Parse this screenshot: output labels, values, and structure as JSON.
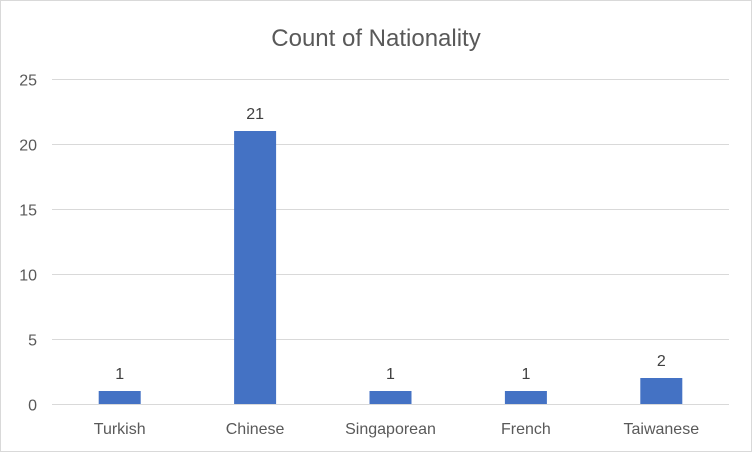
{
  "chart_data": {
    "type": "bar",
    "title": "Count of Nationality",
    "xlabel": "",
    "ylabel": "",
    "categories": [
      "Turkish",
      "Chinese",
      "Singaporean",
      "French",
      "Taiwanese"
    ],
    "values": [
      1,
      21,
      1,
      1,
      2
    ],
    "data_labels": [
      "1",
      "21",
      "1",
      "1",
      "2"
    ],
    "ylim": [
      0,
      25
    ],
    "yticks": [
      0,
      5,
      10,
      15,
      20,
      25
    ],
    "ytick_labels": [
      "0",
      "5",
      "10",
      "15",
      "20",
      "25"
    ],
    "grid": true,
    "legend": "none",
    "bar_color": "#4472C4",
    "grid_color": "#D9D9D9"
  }
}
